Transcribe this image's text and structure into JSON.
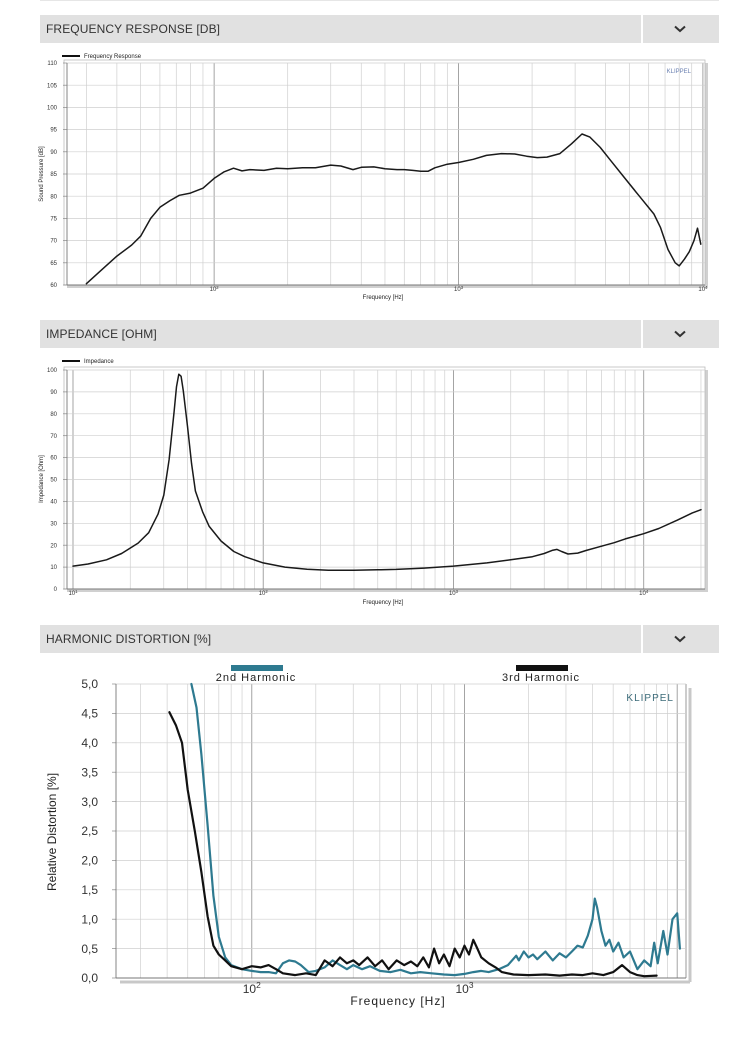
{
  "sections": [
    {
      "title": "FREQUENCY RESPONSE [DB]",
      "toggle_icon": "chevron-down-icon"
    },
    {
      "title": "IMPEDANCE [OHM]",
      "toggle_icon": "chevron-down-icon"
    },
    {
      "title": "HARMONIC DISTORTION [%]",
      "toggle_icon": "chevron-down-icon"
    }
  ],
  "chart_data": [
    {
      "type": "line",
      "title": "",
      "legend": [
        "Frequency Response"
      ],
      "watermark": "KLIPPEL",
      "xlabel": "Frequency [Hz]",
      "ylabel": "Sound Pressure [dB]",
      "x_scale": "log",
      "xlim": [
        25,
        10200
      ],
      "ylim": [
        60,
        110
      ],
      "x_ticks": [
        {
          "value": 100,
          "base": "10",
          "exp": "2"
        },
        {
          "value": 1000,
          "base": "10",
          "exp": "3"
        },
        {
          "value": 10000,
          "base": "10",
          "exp": "4"
        }
      ],
      "y_ticks": [
        "60",
        "65",
        "70",
        "75",
        "80",
        "85",
        "90",
        "95",
        "100",
        "105",
        "110"
      ],
      "series": [
        {
          "name": "Frequency Response",
          "color": "#1a1a1a",
          "points": [
            [
              30,
              60.3
            ],
            [
              34,
              63
            ],
            [
              40,
              66.5
            ],
            [
              46,
              69
            ],
            [
              50,
              71
            ],
            [
              55,
              75
            ],
            [
              60,
              77.5
            ],
            [
              66,
              79
            ],
            [
              72,
              80.2
            ],
            [
              80,
              80.7
            ],
            [
              90,
              81.8
            ],
            [
              100,
              84
            ],
            [
              110,
              85.5
            ],
            [
              120,
              86.3
            ],
            [
              130,
              85.7
            ],
            [
              140,
              86
            ],
            [
              160,
              85.8
            ],
            [
              180,
              86.3
            ],
            [
              200,
              86.2
            ],
            [
              230,
              86.4
            ],
            [
              260,
              86.4
            ],
            [
              300,
              87
            ],
            [
              330,
              86.8
            ],
            [
              370,
              86
            ],
            [
              400,
              86.5
            ],
            [
              450,
              86.6
            ],
            [
              500,
              86.2
            ],
            [
              560,
              86
            ],
            [
              600,
              86
            ],
            [
              650,
              85.8
            ],
            [
              700,
              85.6
            ],
            [
              750,
              85.6
            ],
            [
              800,
              86.4
            ],
            [
              900,
              87.2
            ],
            [
              1000,
              87.6
            ],
            [
              1150,
              88.3
            ],
            [
              1300,
              89.2
            ],
            [
              1500,
              89.6
            ],
            [
              1700,
              89.5
            ],
            [
              1900,
              89
            ],
            [
              2100,
              88.7
            ],
            [
              2300,
              88.8
            ],
            [
              2600,
              89.6
            ],
            [
              2900,
              91.8
            ],
            [
              3200,
              94
            ],
            [
              3450,
              93.3
            ],
            [
              3800,
              91
            ],
            [
              4200,
              88
            ],
            [
              4800,
              84
            ],
            [
              5500,
              80
            ],
            [
              6300,
              76
            ],
            [
              6700,
              73
            ],
            [
              7200,
              68
            ],
            [
              7700,
              65
            ],
            [
              8000,
              64.3
            ],
            [
              8400,
              65.8
            ],
            [
              8800,
              67.5
            ],
            [
              9200,
              70
            ],
            [
              9500,
              72.8
            ],
            [
              9800,
              69.2
            ]
          ]
        }
      ]
    },
    {
      "type": "line",
      "title": "",
      "legend": [
        "Impedance"
      ],
      "xlabel": "Frequency [Hz]",
      "ylabel": "Impedance [Ohm]",
      "x_scale": "log",
      "xlim": [
        9.3,
        21000
      ],
      "ylim": [
        0,
        105
      ],
      "x_ticks": [
        {
          "value": 10,
          "base": "10",
          "exp": "1"
        },
        {
          "value": 100,
          "base": "10",
          "exp": "2"
        },
        {
          "value": 1000,
          "base": "10",
          "exp": "3"
        },
        {
          "value": 10000,
          "base": "10",
          "exp": "4"
        }
      ],
      "y_ticks": [
        "0",
        "10",
        "20",
        "30",
        "40",
        "50",
        "60",
        "70",
        "80",
        "90",
        "100"
      ],
      "series": [
        {
          "name": "Impedance",
          "color": "#1a1a1a",
          "points": [
            [
              10,
              11
            ],
            [
              12,
              12
            ],
            [
              15,
              14
            ],
            [
              18,
              17
            ],
            [
              22,
              22
            ],
            [
              25,
              27
            ],
            [
              28,
              36
            ],
            [
              30,
              45
            ],
            [
              32,
              62
            ],
            [
              34,
              85
            ],
            [
              35,
              97
            ],
            [
              36,
              103
            ],
            [
              37,
              102
            ],
            [
              38,
              95
            ],
            [
              40,
              78
            ],
            [
              42,
              60
            ],
            [
              44,
              47
            ],
            [
              48,
              37
            ],
            [
              52,
              30
            ],
            [
              60,
              23
            ],
            [
              70,
              18
            ],
            [
              80,
              15.5
            ],
            [
              100,
              12.5
            ],
            [
              130,
              10.5
            ],
            [
              170,
              9.5
            ],
            [
              220,
              9
            ],
            [
              300,
              9
            ],
            [
              400,
              9.2
            ],
            [
              500,
              9.4
            ],
            [
              700,
              10
            ],
            [
              1000,
              11
            ],
            [
              1500,
              12.5
            ],
            [
              2000,
              14
            ],
            [
              2600,
              15.5
            ],
            [
              3000,
              17
            ],
            [
              3300,
              18.5
            ],
            [
              3500,
              19
            ],
            [
              3700,
              18
            ],
            [
              4000,
              16.8
            ],
            [
              4500,
              17.2
            ],
            [
              5000,
              18.5
            ],
            [
              6000,
              20.5
            ],
            [
              7000,
              22.2
            ],
            [
              8000,
              24
            ],
            [
              10000,
              26.5
            ],
            [
              12000,
              29
            ],
            [
              15000,
              33
            ],
            [
              18000,
              36.5
            ],
            [
              20000,
              38
            ]
          ]
        }
      ]
    },
    {
      "type": "line",
      "title": "",
      "legend": [
        "2nd Harmonic",
        "3rd Harmonic"
      ],
      "watermark": "KLIPPEL",
      "xlabel": "Frequency  [Hz]",
      "ylabel": "Relative Distortion  [%]",
      "x_scale": "log",
      "xlim": [
        23,
        11000
      ],
      "ylim": [
        0,
        5
      ],
      "x_ticks": [
        {
          "value": 100,
          "base": "10",
          "exp": "2"
        },
        {
          "value": 1000,
          "base": "10",
          "exp": "3"
        }
      ],
      "y_ticks": [
        "0,0",
        "0,5",
        "1,0",
        "1,5",
        "2,0",
        "2,5",
        "3,0",
        "3,5",
        "4,0",
        "4,5",
        "5,0"
      ],
      "series": [
        {
          "name": "2nd Harmonic",
          "color": "#2e7a90",
          "points": [
            [
              52,
              5.0
            ],
            [
              55,
              4.6
            ],
            [
              58,
              3.8
            ],
            [
              62,
              2.6
            ],
            [
              66,
              1.4
            ],
            [
              70,
              0.7
            ],
            [
              75,
              0.35
            ],
            [
              80,
              0.22
            ],
            [
              90,
              0.15
            ],
            [
              100,
              0.12
            ],
            [
              110,
              0.1
            ],
            [
              120,
              0.1
            ],
            [
              130,
              0.08
            ],
            [
              140,
              0.25
            ],
            [
              150,
              0.3
            ],
            [
              160,
              0.28
            ],
            [
              170,
              0.22
            ],
            [
              185,
              0.1
            ],
            [
              200,
              0.12
            ],
            [
              220,
              0.18
            ],
            [
              240,
              0.3
            ],
            [
              260,
              0.22
            ],
            [
              280,
              0.15
            ],
            [
              300,
              0.22
            ],
            [
              330,
              0.15
            ],
            [
              360,
              0.2
            ],
            [
              400,
              0.12
            ],
            [
              450,
              0.1
            ],
            [
              500,
              0.14
            ],
            [
              560,
              0.08
            ],
            [
              620,
              0.1
            ],
            [
              700,
              0.08
            ],
            [
              800,
              0.06
            ],
            [
              900,
              0.05
            ],
            [
              1000,
              0.07
            ],
            [
              1100,
              0.1
            ],
            [
              1200,
              0.12
            ],
            [
              1300,
              0.1
            ],
            [
              1450,
              0.15
            ],
            [
              1600,
              0.22
            ],
            [
              1750,
              0.38
            ],
            [
              1800,
              0.3
            ],
            [
              1900,
              0.45
            ],
            [
              2000,
              0.35
            ],
            [
              2100,
              0.4
            ],
            [
              2200,
              0.32
            ],
            [
              2400,
              0.45
            ],
            [
              2600,
              0.3
            ],
            [
              2800,
              0.42
            ],
            [
              3000,
              0.35
            ],
            [
              3200,
              0.45
            ],
            [
              3400,
              0.55
            ],
            [
              3600,
              0.52
            ],
            [
              3800,
              0.72
            ],
            [
              4000,
              1.0
            ],
            [
              4100,
              1.35
            ],
            [
              4200,
              1.2
            ],
            [
              4400,
              0.8
            ],
            [
              4600,
              0.55
            ],
            [
              4800,
              0.65
            ],
            [
              5000,
              0.45
            ],
            [
              5300,
              0.6
            ],
            [
              5600,
              0.35
            ],
            [
              6000,
              0.45
            ],
            [
              6500,
              0.15
            ],
            [
              7000,
              0.3
            ],
            [
              7500,
              0.2
            ],
            [
              7800,
              0.6
            ],
            [
              8100,
              0.25
            ],
            [
              8600,
              0.8
            ],
            [
              9000,
              0.4
            ],
            [
              9500,
              1.0
            ],
            [
              10000,
              1.1
            ],
            [
              10300,
              0.5
            ]
          ]
        },
        {
          "name": "3rd Harmonic",
          "color": "#111111",
          "points": [
            [
              41,
              4.52
            ],
            [
              44,
              4.3
            ],
            [
              47,
              4.0
            ],
            [
              50,
              3.2
            ],
            [
              54,
              2.5
            ],
            [
              58,
              1.8
            ],
            [
              62,
              1.05
            ],
            [
              66,
              0.55
            ],
            [
              70,
              0.4
            ],
            [
              75,
              0.3
            ],
            [
              80,
              0.2
            ],
            [
              90,
              0.15
            ],
            [
              100,
              0.2
            ],
            [
              110,
              0.18
            ],
            [
              120,
              0.22
            ],
            [
              130,
              0.15
            ],
            [
              140,
              0.08
            ],
            [
              160,
              0.05
            ],
            [
              180,
              0.08
            ],
            [
              200,
              0.05
            ],
            [
              220,
              0.3
            ],
            [
              240,
              0.2
            ],
            [
              260,
              0.35
            ],
            [
              280,
              0.25
            ],
            [
              300,
              0.3
            ],
            [
              320,
              0.22
            ],
            [
              350,
              0.35
            ],
            [
              380,
              0.2
            ],
            [
              410,
              0.3
            ],
            [
              440,
              0.15
            ],
            [
              480,
              0.3
            ],
            [
              520,
              0.22
            ],
            [
              560,
              0.28
            ],
            [
              600,
              0.2
            ],
            [
              640,
              0.35
            ],
            [
              680,
              0.18
            ],
            [
              720,
              0.5
            ],
            [
              760,
              0.25
            ],
            [
              800,
              0.4
            ],
            [
              850,
              0.2
            ],
            [
              900,
              0.5
            ],
            [
              950,
              0.35
            ],
            [
              1000,
              0.55
            ],
            [
              1050,
              0.4
            ],
            [
              1100,
              0.65
            ],
            [
              1150,
              0.5
            ],
            [
              1200,
              0.35
            ],
            [
              1300,
              0.25
            ],
            [
              1400,
              0.18
            ],
            [
              1500,
              0.1
            ],
            [
              1700,
              0.06
            ],
            [
              2000,
              0.05
            ],
            [
              2400,
              0.06
            ],
            [
              2800,
              0.04
            ],
            [
              3200,
              0.06
            ],
            [
              3600,
              0.05
            ],
            [
              4000,
              0.08
            ],
            [
              4500,
              0.05
            ],
            [
              5000,
              0.1
            ],
            [
              5500,
              0.22
            ],
            [
              6000,
              0.1
            ],
            [
              6500,
              0.05
            ],
            [
              7000,
              0.03
            ],
            [
              8000,
              0.04
            ]
          ]
        }
      ]
    }
  ]
}
